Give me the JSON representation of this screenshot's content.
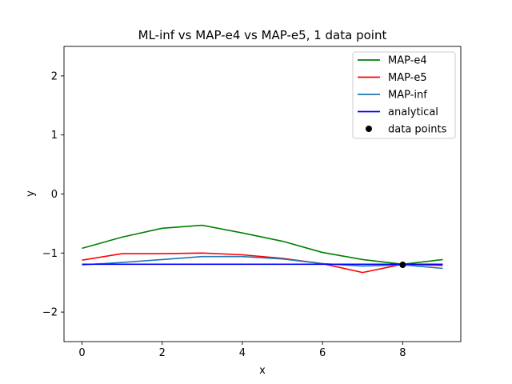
{
  "chart_data": {
    "type": "line",
    "title": "ML-inf vs MAP-e4 vs MAP-e5, 1 data point",
    "xlabel": "x",
    "ylabel": "y",
    "xlim": [
      -0.45,
      9.45
    ],
    "ylim": [
      -2.5,
      2.5
    ],
    "xticks": [
      0,
      2,
      4,
      6,
      8
    ],
    "yticks": [
      -2,
      -1,
      0,
      1,
      2
    ],
    "grid": false,
    "legend_position": "top-right",
    "series": [
      {
        "name": "MAP-e4",
        "color": "#008000",
        "x": [
          0,
          1,
          2,
          3,
          4,
          5,
          6,
          7,
          8,
          9
        ],
        "y": [
          -0.92,
          -0.73,
          -0.58,
          -0.53,
          -0.66,
          -0.8,
          -0.99,
          -1.11,
          -1.19,
          -1.11
        ]
      },
      {
        "name": "MAP-e5",
        "color": "#ff0000",
        "x": [
          0,
          1,
          2,
          3,
          4,
          5,
          6,
          7,
          8,
          9
        ],
        "y": [
          -1.12,
          -1.01,
          -1.01,
          -1.0,
          -1.03,
          -1.09,
          -1.18,
          -1.33,
          -1.19,
          -1.21
        ]
      },
      {
        "name": "MAP-inf",
        "color": "#1f77b4",
        "x": [
          0,
          1,
          2,
          3,
          4,
          5,
          6,
          7,
          8,
          9
        ],
        "y": [
          -1.2,
          -1.16,
          -1.11,
          -1.06,
          -1.06,
          -1.1,
          -1.18,
          -1.22,
          -1.2,
          -1.26
        ]
      },
      {
        "name": "analytical",
        "color": "#0000ff",
        "x": [
          0,
          1,
          2,
          3,
          4,
          5,
          6,
          7,
          8,
          9
        ],
        "y": [
          -1.19,
          -1.19,
          -1.19,
          -1.19,
          -1.19,
          -1.19,
          -1.19,
          -1.19,
          -1.19,
          -1.19
        ]
      }
    ],
    "points": {
      "name": "data points",
      "color": "#000000",
      "x": [
        8
      ],
      "y": [
        -1.2
      ]
    }
  }
}
